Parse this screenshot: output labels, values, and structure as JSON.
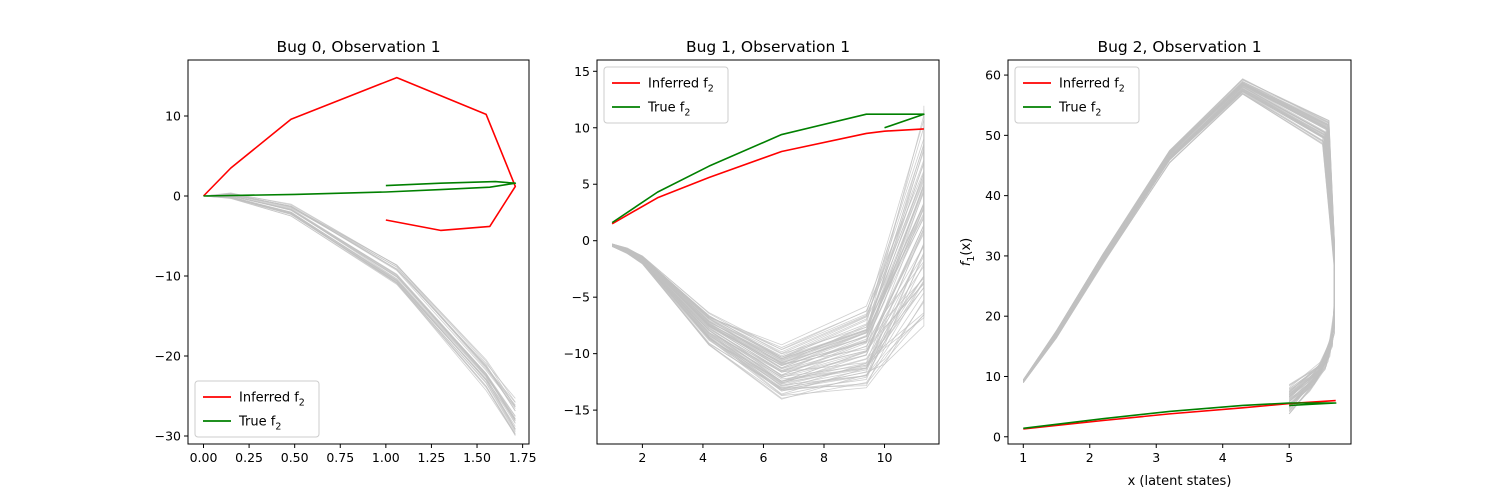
{
  "colors": {
    "inferred": "#ff0000",
    "true": "#008000",
    "samples": "#c0c0c0"
  },
  "chart_data": [
    {
      "type": "line",
      "title": "Bug 0, Observation 1",
      "xlabel": "",
      "ylabel": "",
      "xlim": [
        -0.085,
        1.785
      ],
      "ylim": [
        -31.0,
        17.0
      ],
      "xticks": [
        0.0,
        0.25,
        0.5,
        0.75,
        1.0,
        1.25,
        1.5,
        1.75
      ],
      "xtick_labels": [
        "0.00",
        "0.25",
        "0.50",
        "0.75",
        "1.00",
        "1.25",
        "1.50",
        "1.75"
      ],
      "yticks": [
        -30,
        -20,
        -10,
        0,
        10
      ],
      "ytick_labels": [
        "−30",
        "−20",
        "−10",
        "0",
        "10"
      ],
      "legend_position": "lower-left",
      "legend": [
        {
          "label": "Inferred f",
          "sub": "2",
          "series": "inferred"
        },
        {
          "label": "True f",
          "sub": "2",
          "series": "true"
        }
      ],
      "series": [
        {
          "key": "inferred",
          "x": [
            0.0,
            0.15,
            0.48,
            1.06,
            1.55,
            1.71,
            1.57,
            1.3,
            1.0
          ],
          "y": [
            0.0,
            3.5,
            9.6,
            14.8,
            10.2,
            1.2,
            -3.8,
            -4.3,
            -3.0
          ]
        },
        {
          "key": "true",
          "x": [
            0.0,
            0.5,
            1.0,
            1.3,
            1.57,
            1.71,
            1.6,
            1.3,
            1.0
          ],
          "y": [
            0.0,
            0.2,
            0.5,
            0.8,
            1.1,
            1.6,
            1.8,
            1.6,
            1.3
          ]
        }
      ],
      "samples": {
        "count": 30,
        "base_x": [
          0.0,
          0.15,
          0.48,
          1.06,
          1.55,
          1.71
        ],
        "base_y": [
          0.0,
          0.0,
          -1.8,
          -10.0,
          -22.5,
          -28.0
        ],
        "spread_y": [
          0.0,
          0.3,
          0.6,
          1.2,
          1.5,
          2.0
        ],
        "spread_x": [
          0.0,
          0.0,
          0.0,
          0.0,
          0.0,
          0.0
        ]
      }
    },
    {
      "type": "line",
      "title": "Bug 1, Observation 1",
      "xlabel": "",
      "ylabel": "",
      "xlim": [
        0.5,
        11.8
      ],
      "ylim": [
        -18.0,
        16.0
      ],
      "xticks": [
        2,
        4,
        6,
        8,
        10
      ],
      "xtick_labels": [
        "2",
        "4",
        "6",
        "8",
        "10"
      ],
      "yticks": [
        -15,
        -10,
        -5,
        0,
        5,
        10,
        15
      ],
      "ytick_labels": [
        "−15",
        "−10",
        "−5",
        "0",
        "5",
        "10",
        "15"
      ],
      "legend_position": "upper-left",
      "legend": [
        {
          "label": "Inferred f",
          "sub": "2",
          "series": "inferred"
        },
        {
          "label": "True f",
          "sub": "2",
          "series": "true"
        }
      ],
      "series": [
        {
          "key": "inferred",
          "x": [
            1.0,
            2.5,
            4.2,
            6.6,
            9.4,
            10.0,
            11.3
          ],
          "y": [
            1.5,
            3.8,
            5.6,
            7.9,
            9.5,
            9.7,
            9.9
          ]
        },
        {
          "key": "true",
          "x": [
            1.0,
            2.5,
            4.2,
            6.6,
            9.4,
            10.0,
            11.3,
            10.0
          ],
          "y": [
            1.6,
            4.3,
            6.6,
            9.4,
            11.2,
            11.2,
            11.2,
            10.0
          ]
        }
      ],
      "samples": {
        "count": 70,
        "base_x": [
          1.0,
          1.5,
          2.0,
          4.2,
          6.6,
          9.4,
          10.0,
          11.3,
          11.3
        ],
        "base_y": [
          -0.4,
          -0.9,
          -1.7,
          -7.8,
          -11.7,
          -9.5,
          -6.0,
          1.5,
          6.0
        ],
        "spread_y": [
          0.1,
          0.2,
          0.3,
          1.2,
          1.9,
          2.9,
          4.5,
          7.5,
          5.0
        ],
        "spread_x": [
          0.0,
          0.0,
          0.0,
          0.0,
          0.0,
          0.0,
          0.0,
          0.0,
          0.0
        ]
      }
    },
    {
      "type": "line",
      "title": "Bug 2, Observation 1",
      "xlabel": "x (latent states)",
      "ylabel": "f",
      "ylabel_sub": "1",
      "ylabel_suffix": "(x)",
      "xlim": [
        0.77,
        5.93
      ],
      "ylim": [
        -1.2,
        62.5
      ],
      "xticks": [
        1,
        2,
        3,
        4,
        5
      ],
      "xtick_labels": [
        "1",
        "2",
        "3",
        "4",
        "5"
      ],
      "yticks": [
        0,
        10,
        20,
        30,
        40,
        50,
        60
      ],
      "ytick_labels": [
        "0",
        "10",
        "20",
        "30",
        "40",
        "50",
        "60"
      ],
      "legend_position": "upper-left",
      "legend": [
        {
          "label": "Inferred f",
          "sub": "2",
          "series": "inferred"
        },
        {
          "label": "True f",
          "sub": "2",
          "series": "true"
        }
      ],
      "series": [
        {
          "key": "inferred",
          "x": [
            1.0,
            2.2,
            3.2,
            4.3,
            5.0,
            5.7
          ],
          "y": [
            1.3,
            2.7,
            3.8,
            4.8,
            5.5,
            6.0
          ]
        },
        {
          "key": "true",
          "x": [
            1.0,
            2.2,
            3.2,
            4.3,
            5.0,
            5.7,
            5.0
          ],
          "y": [
            1.4,
            3.0,
            4.2,
            5.2,
            5.6,
            5.6,
            5.2
          ]
        }
      ],
      "samples": {
        "count": 60,
        "base_x": [
          1.0,
          1.5,
          2.2,
          3.2,
          4.3,
          5.55,
          5.68,
          5.68,
          5.6,
          5.4,
          5.0
        ],
        "base_y": [
          9.2,
          17.0,
          29.5,
          46.5,
          58.0,
          50.5,
          30.0,
          20.0,
          14.0,
          10.0,
          6.0
        ],
        "spread_y": [
          0.2,
          0.5,
          0.8,
          0.9,
          1.0,
          1.6,
          2.0,
          2.5,
          2.5,
          2.0,
          2.0
        ],
        "spread_x": [
          0.0,
          0.0,
          0.0,
          0.0,
          0.0,
          0.05,
          0.0,
          0.0,
          0.06,
          0.1,
          0.0
        ]
      }
    }
  ]
}
